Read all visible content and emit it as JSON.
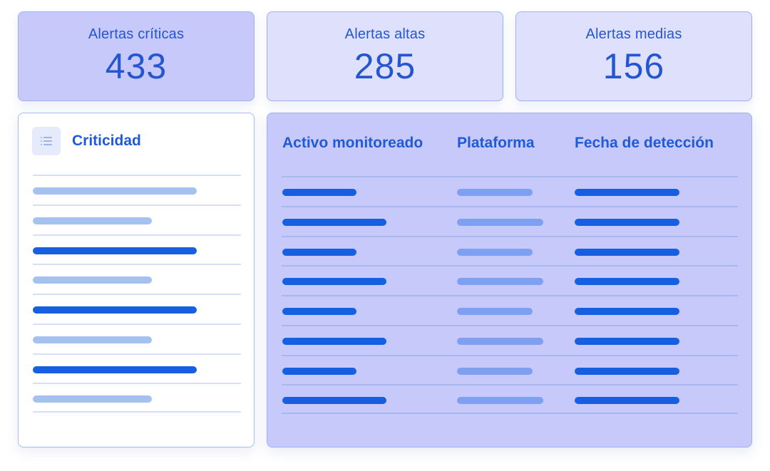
{
  "stats": [
    {
      "label": "Alertas críticas",
      "value": "433"
    },
    {
      "label": "Alertas altas",
      "value": "285"
    },
    {
      "label": "Alertas medias",
      "value": "156"
    }
  ],
  "criticality_panel": {
    "title": "Criticidad",
    "icon": "list-icon",
    "rows": [
      {
        "tone": "light"
      },
      {
        "tone": "light"
      },
      {
        "tone": "dark"
      },
      {
        "tone": "light"
      },
      {
        "tone": "dark"
      },
      {
        "tone": "light"
      },
      {
        "tone": "dark"
      },
      {
        "tone": "light"
      }
    ]
  },
  "table": {
    "columns": [
      "Activo monitoreado",
      "Plataforma",
      "Fecha de detección"
    ],
    "row_count": 8
  },
  "colors": {
    "accent": "#1f5bd6",
    "bar_dark": "#165fe0",
    "bar_light": "#a5c1f0",
    "card_primary": "#c8c9fb",
    "card_secondary": "#dfe0fc"
  }
}
